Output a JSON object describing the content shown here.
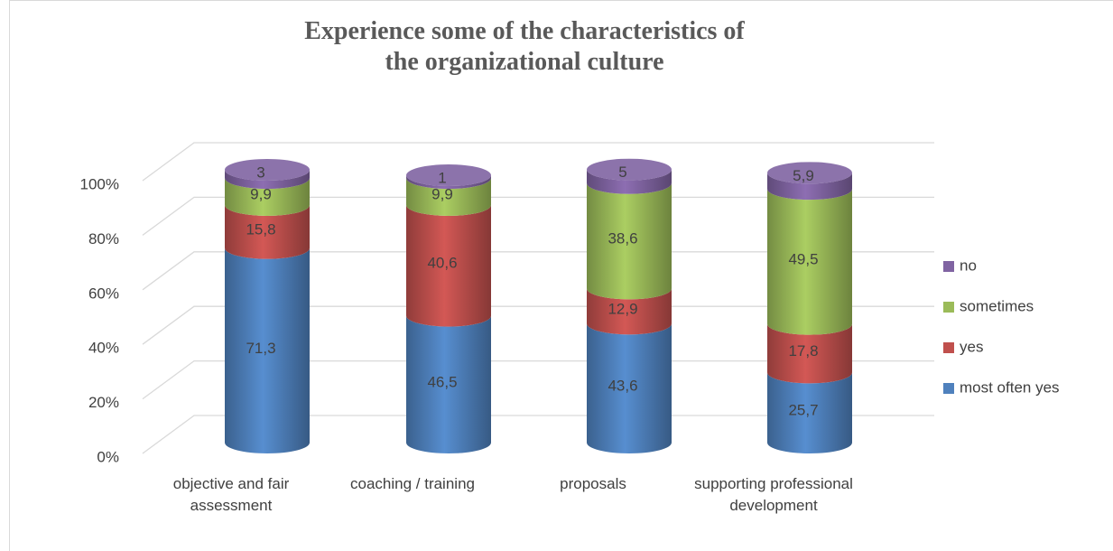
{
  "chart_data": {
    "type": "cylinder-stacked",
    "title": "Experience some of the characteristics of the organizational culture",
    "categories": [
      "objective and fair assessment",
      "coaching / training",
      "proposals",
      "supporting professional development"
    ],
    "series": [
      {
        "name": "most often yes",
        "color": "#4f81bd",
        "values": [
          71.3,
          46.5,
          43.6,
          25.7
        ],
        "value_labels": [
          "71,3",
          "46,5",
          "43,6",
          "25,7"
        ]
      },
      {
        "name": "yes",
        "color": "#c0504d",
        "values": [
          15.8,
          40.6,
          12.9,
          17.8
        ],
        "value_labels": [
          "15,8",
          "40,6",
          "12,9",
          "17,8"
        ]
      },
      {
        "name": "sometimes",
        "color": "#9bbb59",
        "values": [
          9.9,
          9.9,
          38.6,
          49.5
        ],
        "value_labels": [
          "9,9",
          "9,9",
          "38,6",
          "49,5"
        ]
      },
      {
        "name": "no",
        "color": "#8064a2",
        "values": [
          3,
          1,
          5,
          5.9
        ],
        "value_labels": [
          "3",
          "1",
          "5",
          "5,9"
        ]
      }
    ],
    "ylim": [
      0,
      100
    ],
    "yticks": [
      {
        "value": 0,
        "label": "0%"
      },
      {
        "value": 20,
        "label": "20%"
      },
      {
        "value": 40,
        "label": "40%"
      },
      {
        "value": 60,
        "label": "60%"
      },
      {
        "value": 80,
        "label": "80%"
      },
      {
        "value": 100,
        "label": "100%"
      }
    ],
    "grid": true,
    "legend": "right"
  }
}
